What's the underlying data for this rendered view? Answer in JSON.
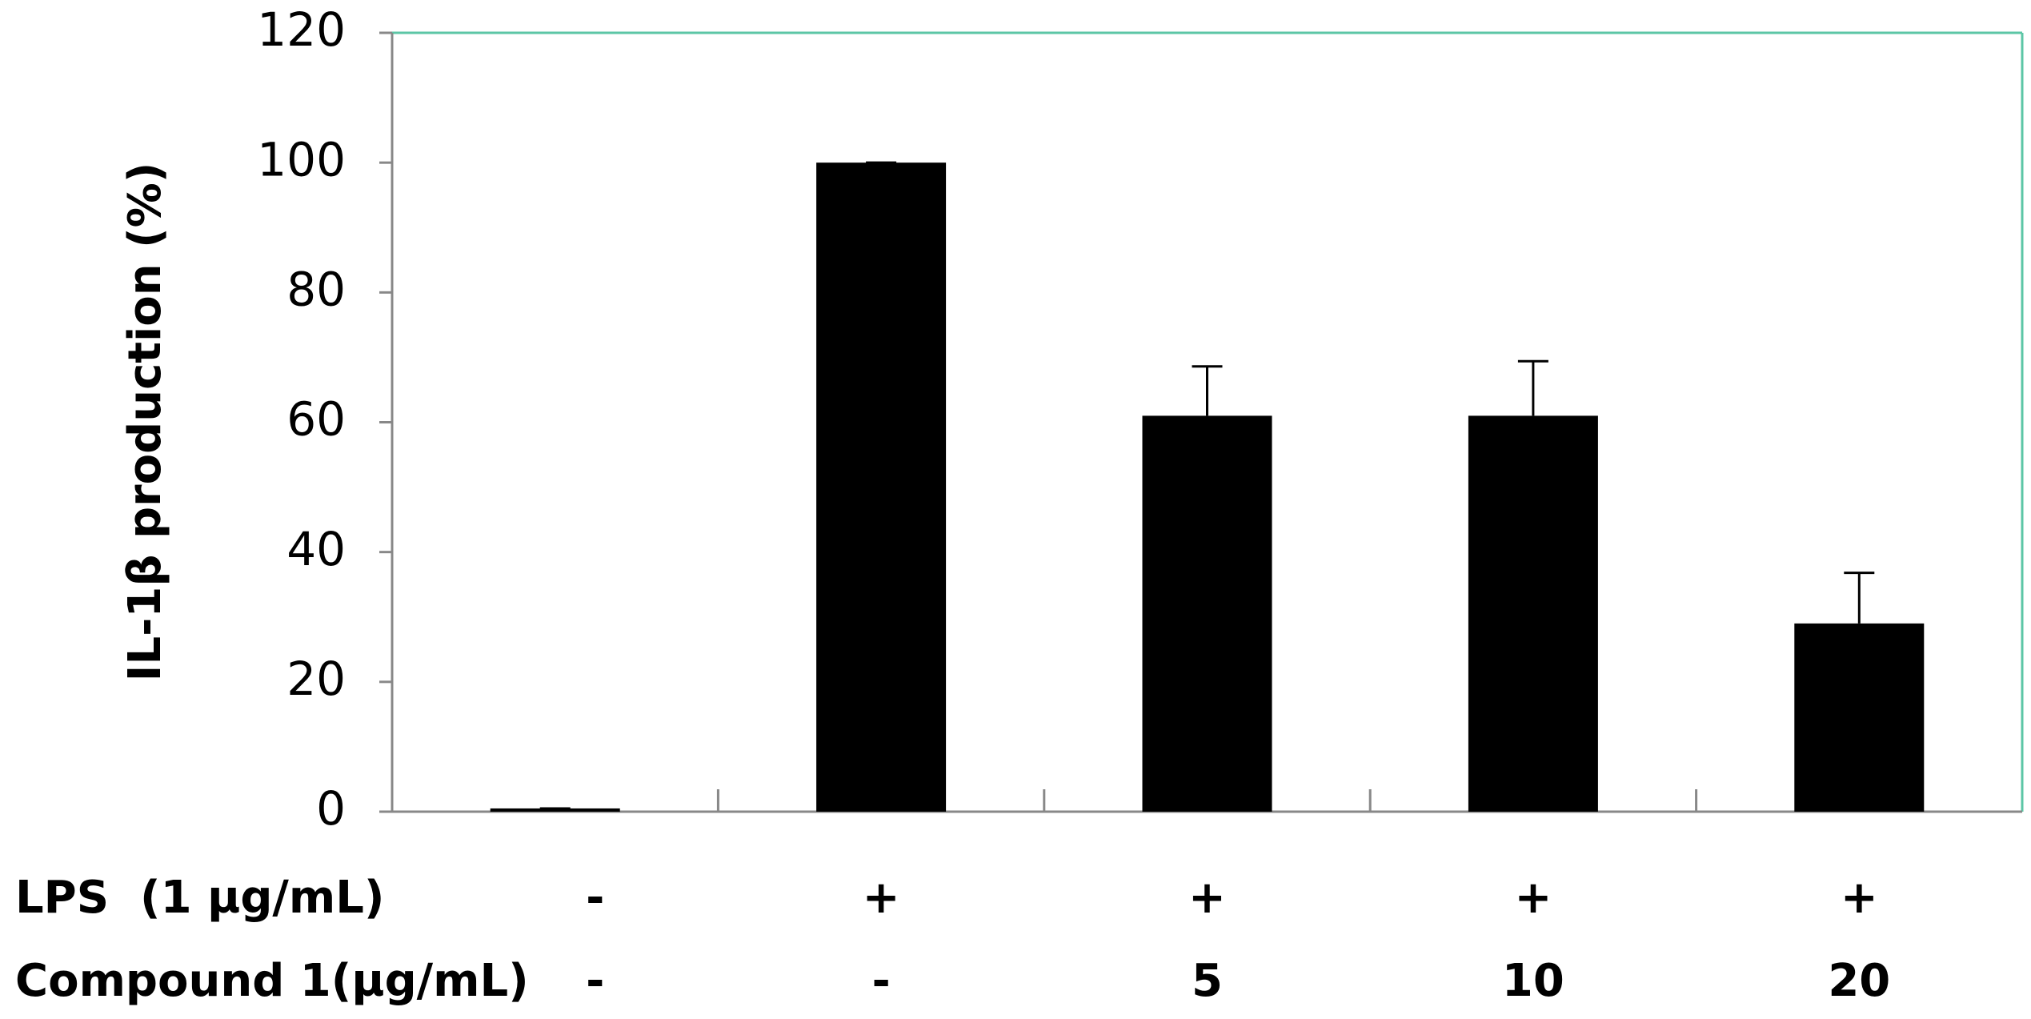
{
  "chart_data": {
    "type": "bar",
    "y_label": "IL-1β production (%)",
    "series": [
      {
        "color": "#000000",
        "values": [
          0.5,
          100,
          61,
          61,
          29
        ],
        "errors": [
          0,
          0,
          7.6,
          8.4,
          7.8
        ]
      }
    ],
    "ylim": [
      0,
      120
    ],
    "yticks": [
      0,
      20,
      40,
      60,
      80,
      100,
      120
    ],
    "treatment_rows": [
      {
        "label": "LPS  (1 µg/mL)",
        "values": [
          "-",
          "+",
          "+",
          "+",
          "+"
        ]
      },
      {
        "label": "Compound 1(µg/mL)",
        "values": [
          "-",
          "-",
          "5",
          "10",
          "20"
        ]
      }
    ]
  }
}
